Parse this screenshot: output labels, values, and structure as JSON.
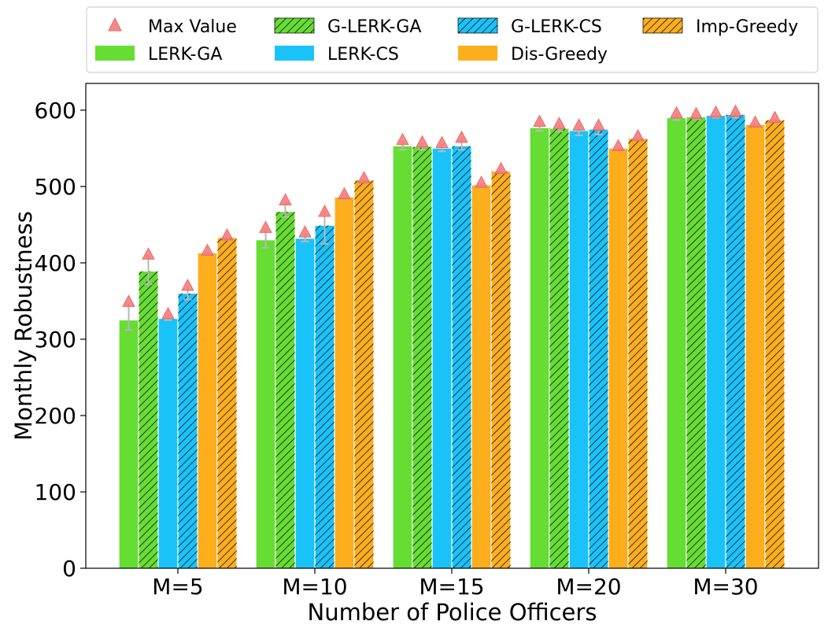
{
  "colors": {
    "LERK-GA": "#66dd33",
    "LERK-CS": "#19c3fa",
    "Dis-Greedy": "#fdae1c",
    "max_marker": "#f47474",
    "error_bar": "#b8b8b8",
    "hatch": "#111111"
  },
  "legend": {
    "items": [
      {
        "label": "Max Value",
        "kind": "marker"
      },
      {
        "label": "LERK-GA",
        "kind": "bar",
        "color_key": "LERK-GA",
        "hatch": false
      },
      {
        "label": "G-LERK-GA",
        "kind": "bar",
        "color_key": "LERK-GA",
        "hatch": true
      },
      {
        "label": "LERK-CS",
        "kind": "bar",
        "color_key": "LERK-CS",
        "hatch": false
      },
      {
        "label": "G-LERK-CS",
        "kind": "bar",
        "color_key": "LERK-CS",
        "hatch": true
      },
      {
        "label": "Dis-Greedy",
        "kind": "bar",
        "color_key": "Dis-Greedy",
        "hatch": false
      },
      {
        "label": "Imp-Greedy",
        "kind": "bar",
        "color_key": "Dis-Greedy",
        "hatch": true
      }
    ],
    "placement": "top, outside plot, 4 columns"
  },
  "chart_data": {
    "type": "bar",
    "title": "",
    "xlabel": "Number of Police Officers",
    "ylabel": "Monthly Robustness",
    "categories": [
      "M=5",
      "M=10",
      "M=15",
      "M=20",
      "M=30"
    ],
    "ylim": [
      0,
      635
    ],
    "yticks": [
      0,
      100,
      200,
      300,
      400,
      500,
      600
    ],
    "grid": false,
    "series": [
      {
        "name": "LERK-GA",
        "color_key": "LERK-GA",
        "hatch": false,
        "values": [
          325,
          430,
          553,
          577,
          590
        ],
        "err_low": [
          312,
          420,
          548,
          573,
          587
        ],
        "max": [
          348,
          445,
          560,
          584,
          595
        ]
      },
      {
        "name": "G-LERK-GA",
        "color_key": "LERK-GA",
        "hatch": true,
        "values": [
          389,
          467,
          552,
          576,
          591
        ],
        "err_low": [
          372,
          460,
          548,
          572,
          588
        ],
        "max": [
          410,
          481,
          557,
          581,
          594
        ]
      },
      {
        "name": "LERK-CS",
        "color_key": "LERK-CS",
        "hatch": false,
        "values": [
          327,
          432,
          550,
          573,
          593
        ],
        "err_low": [
          325,
          428,
          546,
          567,
          590
        ],
        "max": [
          332,
          439,
          556,
          579,
          596
        ]
      },
      {
        "name": "G-LERK-CS",
        "color_key": "LERK-CS",
        "hatch": true,
        "values": [
          360,
          449,
          553,
          575,
          594
        ],
        "err_low": [
          352,
          425,
          548,
          568,
          590
        ],
        "max": [
          369,
          466,
          563,
          579,
          597
        ]
      },
      {
        "name": "Dis-Greedy",
        "color_key": "Dis-Greedy",
        "hatch": false,
        "values": [
          413,
          486,
          502,
          550,
          581
        ],
        "err_low": [
          410,
          484,
          499,
          548,
          579
        ],
        "max": [
          415,
          489,
          504,
          552,
          583
        ]
      },
      {
        "name": "Imp-Greedy",
        "color_key": "Dis-Greedy",
        "hatch": true,
        "values": [
          433,
          508,
          520,
          563,
          587
        ],
        "err_low": [
          430,
          506,
          518,
          561,
          585
        ],
        "max": [
          435,
          510,
          522,
          565,
          589
        ]
      }
    ]
  }
}
